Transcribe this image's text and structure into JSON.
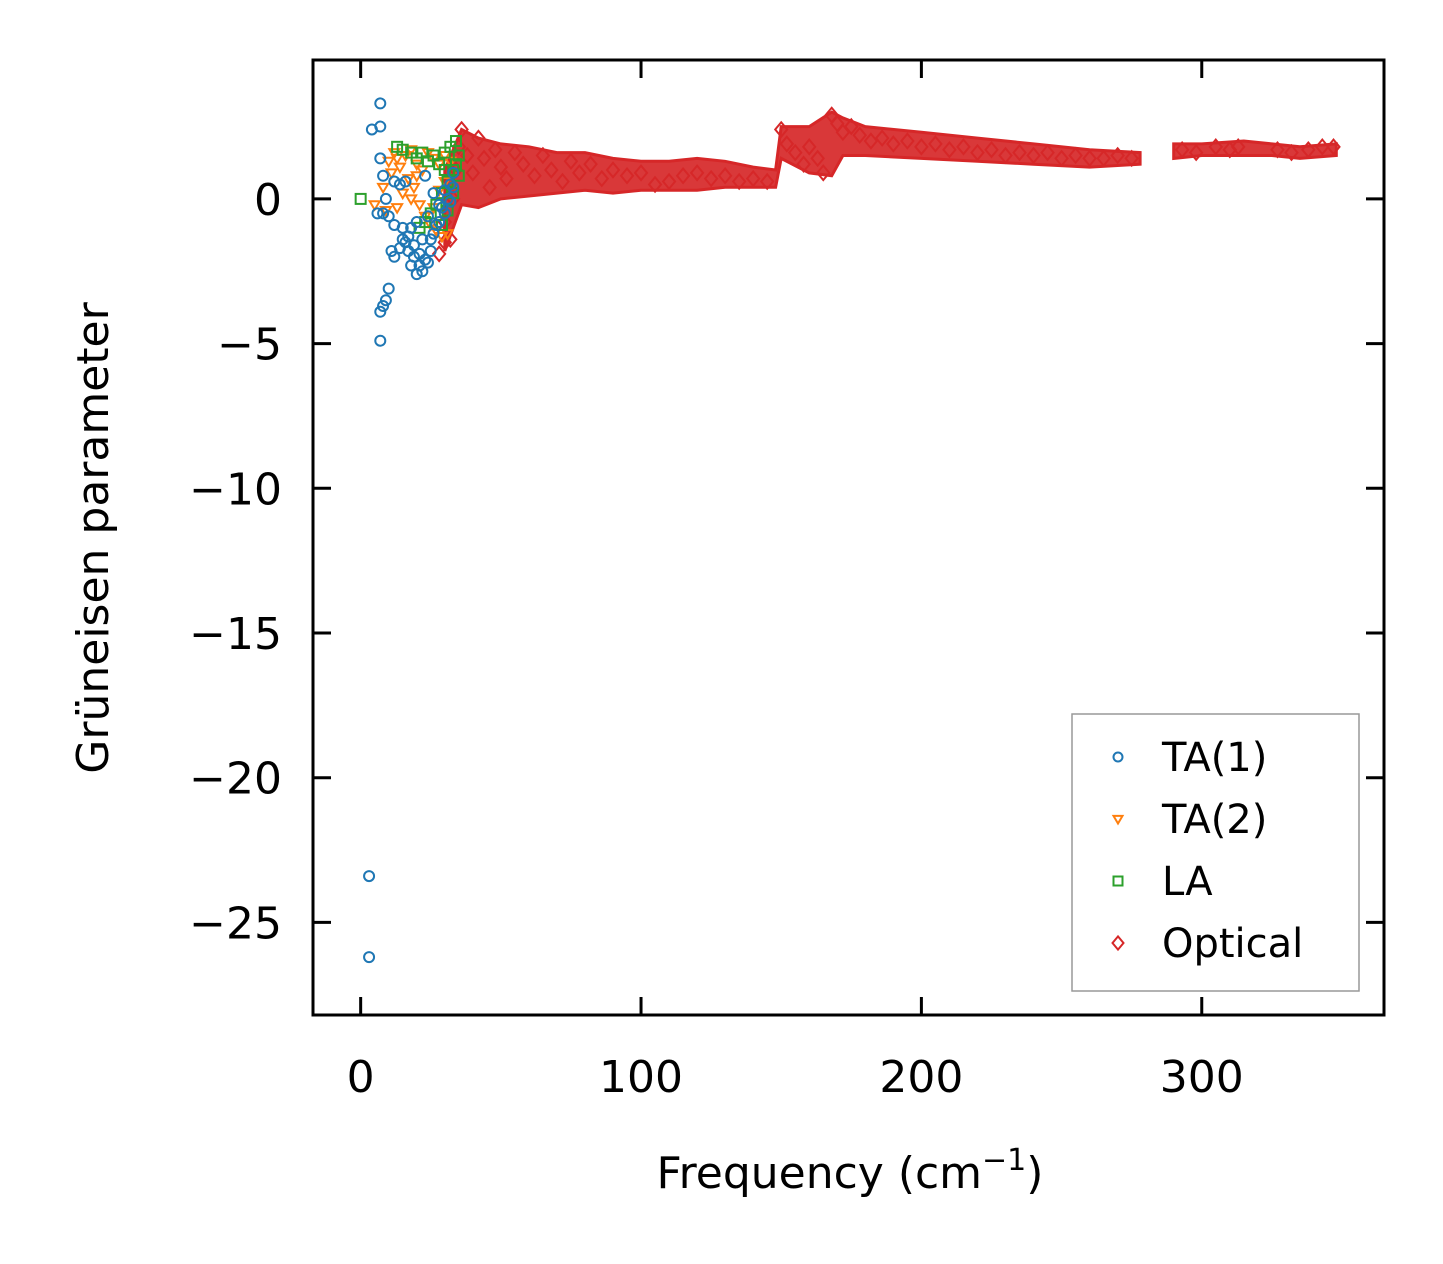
{
  "chart_data": {
    "type": "scatter",
    "title": "",
    "xlabel": "Frequency (cm",
    "xlabel_sup": "−1",
    "xlabel_tail": ")",
    "ylabel": "Grüneisen parameter",
    "xlim": [
      -17,
      365
    ],
    "ylim": [
      -28.2,
      4.8
    ],
    "xticks": [
      0,
      100,
      200,
      300
    ],
    "xtick_labels": [
      "0",
      "100",
      "200",
      "300"
    ],
    "yticks": [
      0,
      -5,
      -10,
      -15,
      -20,
      -25
    ],
    "ytick_labels": [
      "0",
      "−5",
      "−10",
      "−15",
      "−20",
      "−25"
    ],
    "legend_position": "lower-right",
    "series": [
      {
        "name": "TA(1)",
        "marker": "circle",
        "color": "#1f77b4",
        "points": [
          [
            7,
            3.3
          ],
          [
            4,
            2.4
          ],
          [
            7,
            2.5
          ],
          [
            7,
            1.4
          ],
          [
            8,
            0.8
          ],
          [
            9,
            0.0
          ],
          [
            6,
            -0.5
          ],
          [
            8,
            -0.5
          ],
          [
            10,
            -0.6
          ],
          [
            12,
            0.6
          ],
          [
            14,
            0.5
          ],
          [
            16,
            0.6
          ],
          [
            12,
            -0.9
          ],
          [
            15,
            -1.0
          ],
          [
            17,
            -1.3
          ],
          [
            19,
            -1.6
          ],
          [
            21,
            -1.9
          ],
          [
            23,
            -2.1
          ],
          [
            25,
            -1.8
          ],
          [
            18,
            -2.3
          ],
          [
            20,
            -2.6
          ],
          [
            22,
            -2.5
          ],
          [
            24,
            -2.2
          ],
          [
            11,
            -1.8
          ],
          [
            12,
            -2.0
          ],
          [
            14,
            -1.7
          ],
          [
            16,
            -1.5
          ],
          [
            26,
            -1.2
          ],
          [
            28,
            -0.8
          ],
          [
            30,
            -0.5
          ],
          [
            31,
            0.0
          ],
          [
            32,
            0.5
          ],
          [
            33,
            0.9
          ],
          [
            29,
            -0.3
          ],
          [
            27,
            -0.9
          ],
          [
            25,
            -1.4
          ],
          [
            23,
            0.8
          ],
          [
            10,
            -3.1
          ],
          [
            9,
            -3.5
          ],
          [
            8,
            -3.7
          ],
          [
            7,
            -3.9
          ],
          [
            7,
            -4.9
          ],
          [
            3,
            -23.4
          ],
          [
            3,
            -26.2
          ],
          [
            18,
            -1.0
          ],
          [
            20,
            -0.8
          ],
          [
            22,
            -1.4
          ],
          [
            24,
            -0.6
          ],
          [
            26,
            0.2
          ],
          [
            28,
            -0.2
          ],
          [
            30,
            0.3
          ],
          [
            32,
            -0.1
          ],
          [
            33,
            0.4
          ],
          [
            19,
            -2.0
          ],
          [
            21,
            -2.3
          ],
          [
            17,
            -1.8
          ],
          [
            15,
            -1.4
          ]
        ]
      },
      {
        "name": "TA(2)",
        "marker": "triangle-down",
        "color": "#ff7f0e",
        "points": [
          [
            5,
            -0.2
          ],
          [
            8,
            0.4
          ],
          [
            10,
            1.3
          ],
          [
            12,
            1.6
          ],
          [
            14,
            1.1
          ],
          [
            16,
            1.5
          ],
          [
            18,
            1.7
          ],
          [
            20,
            1.2
          ],
          [
            22,
            1.0
          ],
          [
            24,
            1.6
          ],
          [
            26,
            1.4
          ],
          [
            28,
            1.2
          ],
          [
            30,
            1.5
          ],
          [
            32,
            1.3
          ],
          [
            15,
            0.2
          ],
          [
            13,
            -0.3
          ],
          [
            17,
            0.7
          ],
          [
            19,
            0.4
          ],
          [
            21,
            -0.2
          ],
          [
            23,
            -0.6
          ],
          [
            25,
            -0.9
          ],
          [
            27,
            -1.1
          ],
          [
            29,
            -1.3
          ],
          [
            31,
            -1.2
          ],
          [
            26,
            -0.3
          ],
          [
            28,
            0.3
          ],
          [
            30,
            0.6
          ],
          [
            9,
            -0.4
          ],
          [
            11,
            0.9
          ],
          [
            13,
            1.4
          ],
          [
            18,
            0.0
          ],
          [
            20,
            0.8
          ]
        ]
      },
      {
        "name": "LA",
        "marker": "square",
        "color": "#2ca02c",
        "points": [
          [
            0,
            0.0
          ],
          [
            13,
            1.8
          ],
          [
            15,
            1.7
          ],
          [
            18,
            1.6
          ],
          [
            20,
            1.4
          ],
          [
            22,
            1.6
          ],
          [
            24,
            1.3
          ],
          [
            26,
            1.5
          ],
          [
            28,
            1.2
          ],
          [
            30,
            1.6
          ],
          [
            32,
            1.8
          ],
          [
            34,
            2.0
          ],
          [
            35,
            1.5
          ],
          [
            33,
            1.0
          ],
          [
            31,
            0.6
          ],
          [
            29,
            0.2
          ],
          [
            27,
            -0.2
          ],
          [
            25,
            -0.5
          ],
          [
            23,
            -0.8
          ],
          [
            21,
            -1.0
          ],
          [
            29,
            -0.9
          ],
          [
            31,
            -0.4
          ],
          [
            33,
            0.2
          ],
          [
            35,
            0.8
          ],
          [
            34,
            1.2
          ],
          [
            30,
            1.0
          ]
        ]
      },
      {
        "name": "Optical",
        "marker": "diamond",
        "color": "#d62728",
        "points": [
          [
            28,
            -1.9
          ],
          [
            30,
            -1.5
          ],
          [
            32,
            -1.4
          ],
          [
            30,
            -0.8
          ],
          [
            33,
            0.0
          ],
          [
            34,
            1.0
          ],
          [
            35,
            1.8
          ],
          [
            36,
            2.4
          ],
          [
            38,
            1.5
          ],
          [
            40,
            0.9
          ],
          [
            42,
            2.1
          ],
          [
            44,
            1.4
          ],
          [
            46,
            0.4
          ],
          [
            48,
            1.7
          ],
          [
            50,
            1.1
          ],
          [
            52,
            0.7
          ],
          [
            55,
            1.6
          ],
          [
            58,
            1.2
          ],
          [
            62,
            0.8
          ],
          [
            65,
            1.5
          ],
          [
            68,
            1.0
          ],
          [
            72,
            0.6
          ],
          [
            75,
            1.3
          ],
          [
            78,
            0.9
          ],
          [
            82,
            1.2
          ],
          [
            86,
            0.7
          ],
          [
            90,
            1.0
          ],
          [
            95,
            0.8
          ],
          [
            100,
            0.9
          ],
          [
            105,
            0.5
          ],
          [
            110,
            0.6
          ],
          [
            115,
            0.8
          ],
          [
            120,
            0.9
          ],
          [
            125,
            0.7
          ],
          [
            130,
            0.8
          ],
          [
            135,
            0.6
          ],
          [
            140,
            0.7
          ],
          [
            145,
            0.6
          ],
          [
            150,
            2.4
          ],
          [
            152,
            1.9
          ],
          [
            155,
            1.6
          ],
          [
            158,
            1.2
          ],
          [
            160,
            1.8
          ],
          [
            163,
            1.4
          ],
          [
            165,
            0.9
          ],
          [
            168,
            2.9
          ],
          [
            170,
            2.6
          ],
          [
            172,
            2.3
          ],
          [
            175,
            2.5
          ],
          [
            178,
            2.2
          ],
          [
            182,
            2.0
          ],
          [
            186,
            2.1
          ],
          [
            190,
            1.9
          ],
          [
            195,
            2.0
          ],
          [
            200,
            1.8
          ],
          [
            205,
            1.9
          ],
          [
            210,
            1.7
          ],
          [
            215,
            1.8
          ],
          [
            220,
            1.6
          ],
          [
            225,
            1.7
          ],
          [
            230,
            1.5
          ],
          [
            235,
            1.6
          ],
          [
            240,
            1.5
          ],
          [
            245,
            1.6
          ],
          [
            250,
            1.4
          ],
          [
            255,
            1.5
          ],
          [
            260,
            1.4
          ],
          [
            265,
            1.4
          ],
          [
            270,
            1.5
          ],
          [
            275,
            1.4
          ],
          [
            293,
            1.7
          ],
          [
            298,
            1.6
          ],
          [
            305,
            1.8
          ],
          [
            310,
            1.7
          ],
          [
            313,
            1.8
          ],
          [
            327,
            1.7
          ],
          [
            332,
            1.6
          ],
          [
            338,
            1.7
          ],
          [
            343,
            1.8
          ],
          [
            347,
            1.8
          ]
        ]
      }
    ],
    "optical_band": {
      "name": "Optical",
      "color": "#d62728",
      "upper": [
        [
          30,
          1.0
        ],
        [
          36,
          2.4
        ],
        [
          42,
          2.1
        ],
        [
          50,
          1.9
        ],
        [
          60,
          1.8
        ],
        [
          70,
          1.6
        ],
        [
          80,
          1.6
        ],
        [
          90,
          1.4
        ],
        [
          100,
          1.3
        ],
        [
          110,
          1.3
        ],
        [
          120,
          1.4
        ],
        [
          130,
          1.3
        ],
        [
          140,
          1.1
        ],
        [
          148,
          1.0
        ],
        [
          150,
          2.5
        ],
        [
          160,
          2.5
        ],
        [
          168,
          3.0
        ],
        [
          172,
          2.8
        ],
        [
          180,
          2.5
        ],
        [
          200,
          2.3
        ],
        [
          220,
          2.1
        ],
        [
          240,
          1.9
        ],
        [
          260,
          1.7
        ],
        [
          278,
          1.6
        ]
      ],
      "lower": [
        [
          30,
          -1.8
        ],
        [
          36,
          -0.2
        ],
        [
          42,
          -0.3
        ],
        [
          50,
          0.0
        ],
        [
          60,
          0.1
        ],
        [
          70,
          0.2
        ],
        [
          80,
          0.3
        ],
        [
          90,
          0.2
        ],
        [
          100,
          0.3
        ],
        [
          110,
          0.3
        ],
        [
          120,
          0.3
        ],
        [
          130,
          0.4
        ],
        [
          140,
          0.4
        ],
        [
          148,
          0.4
        ],
        [
          150,
          1.4
        ],
        [
          160,
          0.9
        ],
        [
          168,
          0.8
        ],
        [
          172,
          1.5
        ],
        [
          180,
          1.5
        ],
        [
          200,
          1.4
        ],
        [
          220,
          1.3
        ],
        [
          240,
          1.2
        ],
        [
          260,
          1.1
        ],
        [
          278,
          1.2
        ]
      ],
      "upper_b": [
        [
          290,
          1.9
        ],
        [
          300,
          1.9
        ],
        [
          315,
          2.0
        ],
        [
          325,
          1.9
        ],
        [
          335,
          1.8
        ],
        [
          348,
          1.9
        ]
      ],
      "lower_b": [
        [
          290,
          1.4
        ],
        [
          300,
          1.5
        ],
        [
          315,
          1.5
        ],
        [
          325,
          1.5
        ],
        [
          335,
          1.4
        ],
        [
          348,
          1.5
        ]
      ]
    }
  }
}
